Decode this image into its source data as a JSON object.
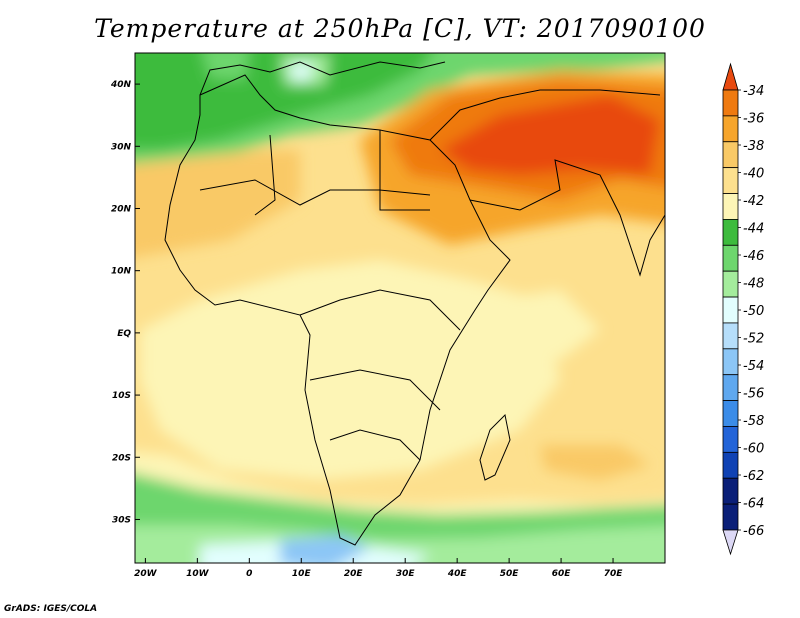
{
  "title": "Temperature at 250hPa [C], VT: 2017090100",
  "footer": "GrADS: IGES/COLA",
  "map": {
    "lon_range": [
      -22,
      80
    ],
    "lat_range": [
      -37,
      45
    ],
    "lon_ticks": [
      {
        "value": -20,
        "label": "20W"
      },
      {
        "value": -10,
        "label": "10W"
      },
      {
        "value": 0,
        "label": "0"
      },
      {
        "value": 10,
        "label": "10E"
      },
      {
        "value": 20,
        "label": "20E"
      },
      {
        "value": 30,
        "label": "30E"
      },
      {
        "value": 40,
        "label": "40E"
      },
      {
        "value": 50,
        "label": "50E"
      },
      {
        "value": 60,
        "label": "60E"
      },
      {
        "value": 70,
        "label": "70E"
      }
    ],
    "lat_ticks": [
      {
        "value": 40,
        "label": "40N"
      },
      {
        "value": 30,
        "label": "30N"
      },
      {
        "value": 20,
        "label": "20N"
      },
      {
        "value": 10,
        "label": "10N"
      },
      {
        "value": 0,
        "label": "EQ"
      },
      {
        "value": -10,
        "label": "10S"
      },
      {
        "value": -20,
        "label": "20S"
      },
      {
        "value": -30,
        "label": "30S"
      }
    ]
  },
  "colorbar": {
    "labels": [
      "-34",
      "-36",
      "-38",
      "-40",
      "-42",
      "-44",
      "-46",
      "-48",
      "-50",
      "-52",
      "-54",
      "-56",
      "-58",
      "-60",
      "-62",
      "-64",
      "-66"
    ],
    "colors": [
      "#e84a10",
      "#ef7a10",
      "#f6a52c",
      "#f9c966",
      "#fde08e",
      "#fdf5b6",
      "#3dbb3d",
      "#6dd66d",
      "#a4ec9c",
      "#e2fefe",
      "#b6defa",
      "#8cc6f6",
      "#5fa8ef",
      "#3b8ce8",
      "#2364d8",
      "#0f42b4",
      "#0a1f78"
    ]
  }
}
